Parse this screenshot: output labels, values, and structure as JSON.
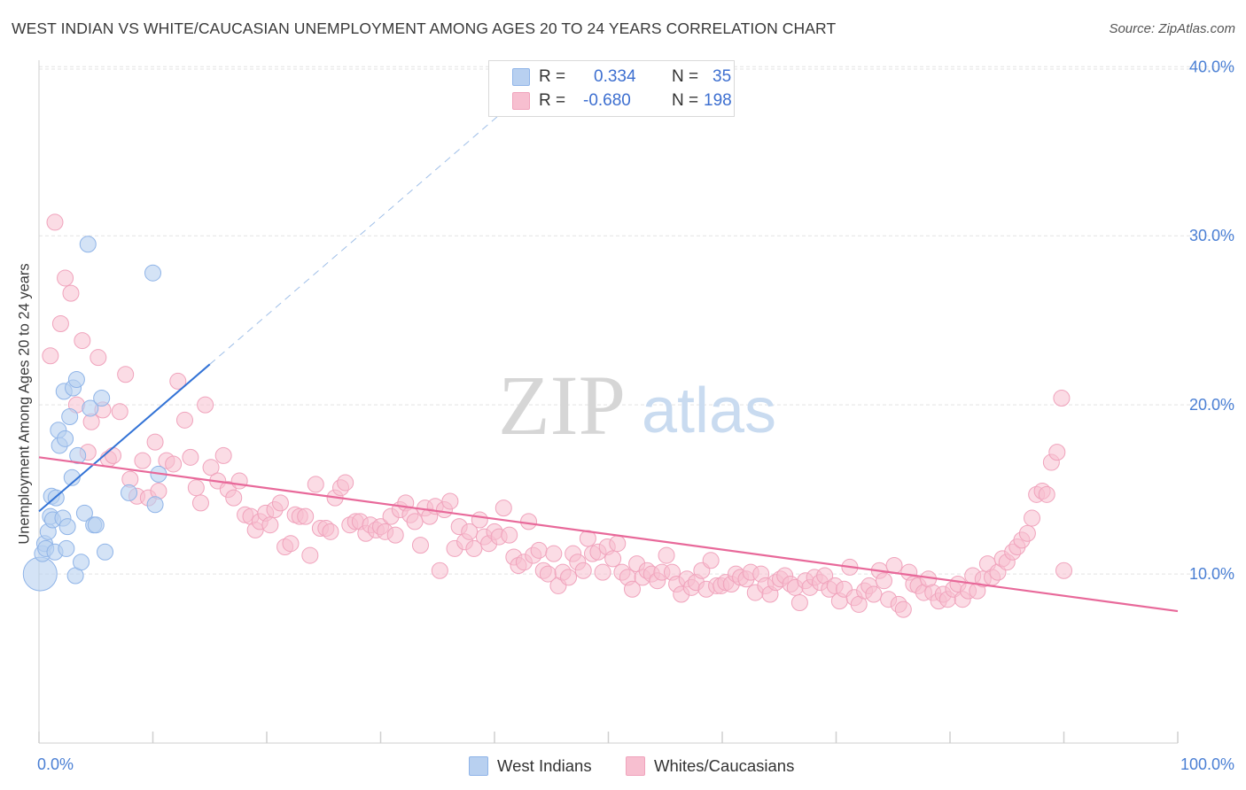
{
  "title": "WEST INDIAN VS WHITE/CAUCASIAN UNEMPLOYMENT AMONG AGES 20 TO 24 YEARS CORRELATION CHART",
  "source": "Source: ZipAtlas.com",
  "watermark": {
    "zip": "ZIP",
    "atlas": "atlas"
  },
  "legend": {
    "rows": [
      {
        "r_label": "R =",
        "r_value": "0.334",
        "n_label": "N =",
        "n_value": "35"
      },
      {
        "r_label": "R =",
        "r_value": "-0.680",
        "n_label": "N =",
        "n_value": "198"
      }
    ]
  },
  "bottom_legend": [
    "West Indians",
    "Whites/Caucasians"
  ],
  "colors": {
    "blue_fill": "#b8d0f0",
    "blue_stroke": "#8fb4e8",
    "blue_line": "#3373d6",
    "pink_fill": "#f7bfd0",
    "pink_stroke": "#f0a3bc",
    "pink_line": "#e8699a",
    "tick_label": "#4a7fd4",
    "grid": "#e3e3e3"
  },
  "chart_data": {
    "type": "scatter",
    "title": "WEST INDIAN VS WHITE/CAUCASIAN UNEMPLOYMENT AMONG AGES 20 TO 24 YEARS CORRELATION CHART",
    "xlabel": "",
    "ylabel": "Unemployment Among Ages 20 to 24 years",
    "xlim": [
      0,
      100
    ],
    "ylim": [
      0,
      40.8
    ],
    "x_tick_labels": [
      "0.0%",
      "100.0%"
    ],
    "y_ticks": [
      10,
      20,
      30,
      40
    ],
    "y_tick_labels": [
      "10.0%",
      "20.0%",
      "30.0%",
      "40.0%"
    ],
    "grid": true,
    "legend_position": "top-center",
    "series": [
      {
        "name": "West Indians",
        "R": 0.334,
        "N": 35,
        "trend": {
          "x": [
            0,
            15
          ],
          "y": [
            13.7,
            22.4
          ],
          "dashed_extension_to_x": 42
        },
        "points": [
          [
            0.1,
            10.0
          ],
          [
            0.3,
            11.2
          ],
          [
            0.5,
            11.8
          ],
          [
            0.6,
            11.5
          ],
          [
            0.8,
            12.5
          ],
          [
            1.0,
            13.4
          ],
          [
            1.1,
            14.6
          ],
          [
            1.2,
            13.2
          ],
          [
            1.4,
            11.3
          ],
          [
            1.5,
            14.5
          ],
          [
            1.7,
            18.5
          ],
          [
            1.8,
            17.6
          ],
          [
            2.1,
            13.3
          ],
          [
            2.2,
            20.8
          ],
          [
            2.3,
            18.0
          ],
          [
            2.4,
            11.5
          ],
          [
            2.5,
            12.8
          ],
          [
            2.7,
            19.3
          ],
          [
            2.9,
            15.7
          ],
          [
            3.0,
            21.0
          ],
          [
            3.2,
            9.9
          ],
          [
            3.3,
            21.5
          ],
          [
            3.4,
            17.0
          ],
          [
            3.7,
            10.7
          ],
          [
            4.0,
            13.6
          ],
          [
            4.3,
            29.5
          ],
          [
            4.5,
            19.8
          ],
          [
            4.8,
            12.9
          ],
          [
            5.0,
            12.9
          ],
          [
            5.5,
            20.4
          ],
          [
            5.8,
            11.3
          ],
          [
            7.9,
            14.8
          ],
          [
            10.0,
            27.8
          ],
          [
            10.2,
            14.1
          ],
          [
            10.5,
            15.9
          ]
        ]
      },
      {
        "name": "Whites/Caucasians",
        "R": -0.68,
        "N": 198,
        "trend": {
          "x": [
            0,
            100
          ],
          "y": [
            16.9,
            7.8
          ]
        },
        "points": [
          [
            1.0,
            22.9
          ],
          [
            1.4,
            30.8
          ],
          [
            1.9,
            24.8
          ],
          [
            2.3,
            27.5
          ],
          [
            2.8,
            26.6
          ],
          [
            3.3,
            20.0
          ],
          [
            3.8,
            23.8
          ],
          [
            4.3,
            17.2
          ],
          [
            4.6,
            19.0
          ],
          [
            5.2,
            22.8
          ],
          [
            5.6,
            19.7
          ],
          [
            6.1,
            16.8
          ],
          [
            6.5,
            17.0
          ],
          [
            7.1,
            19.6
          ],
          [
            7.6,
            21.8
          ],
          [
            8.0,
            15.6
          ],
          [
            8.6,
            14.6
          ],
          [
            9.1,
            16.7
          ],
          [
            9.6,
            14.5
          ],
          [
            10.2,
            17.8
          ],
          [
            10.5,
            14.9
          ],
          [
            11.2,
            16.7
          ],
          [
            11.8,
            16.5
          ],
          [
            12.2,
            21.4
          ],
          [
            12.8,
            19.1
          ],
          [
            13.3,
            16.9
          ],
          [
            13.8,
            15.1
          ],
          [
            14.2,
            14.2
          ],
          [
            14.6,
            20.0
          ],
          [
            15.1,
            16.3
          ],
          [
            15.7,
            15.5
          ],
          [
            16.2,
            17.0
          ],
          [
            16.6,
            15.0
          ],
          [
            17.1,
            14.5
          ],
          [
            17.6,
            15.5
          ],
          [
            18.1,
            13.5
          ],
          [
            18.6,
            13.4
          ],
          [
            19.0,
            12.6
          ],
          [
            19.4,
            13.1
          ],
          [
            19.9,
            13.6
          ],
          [
            20.3,
            12.9
          ],
          [
            20.7,
            13.8
          ],
          [
            21.2,
            14.2
          ],
          [
            21.6,
            11.6
          ],
          [
            22.1,
            11.8
          ],
          [
            22.5,
            13.5
          ],
          [
            22.9,
            13.4
          ],
          [
            23.4,
            13.4
          ],
          [
            23.8,
            11.1
          ],
          [
            24.3,
            15.3
          ],
          [
            24.7,
            12.7
          ],
          [
            25.2,
            12.7
          ],
          [
            25.6,
            12.5
          ],
          [
            26.0,
            14.5
          ],
          [
            26.5,
            15.1
          ],
          [
            26.9,
            15.4
          ],
          [
            27.3,
            12.9
          ],
          [
            27.8,
            13.1
          ],
          [
            28.2,
            13.1
          ],
          [
            28.7,
            12.4
          ],
          [
            29.1,
            12.9
          ],
          [
            29.6,
            12.6
          ],
          [
            30.0,
            12.8
          ],
          [
            30.4,
            12.5
          ],
          [
            30.9,
            13.4
          ],
          [
            31.3,
            12.3
          ],
          [
            31.7,
            13.8
          ],
          [
            32.2,
            14.2
          ],
          [
            32.6,
            13.5
          ],
          [
            33.0,
            13.1
          ],
          [
            33.5,
            11.7
          ],
          [
            33.9,
            13.9
          ],
          [
            34.3,
            13.4
          ],
          [
            34.8,
            14.0
          ],
          [
            35.2,
            10.2
          ],
          [
            35.6,
            13.8
          ],
          [
            36.1,
            14.3
          ],
          [
            36.5,
            11.5
          ],
          [
            36.9,
            12.8
          ],
          [
            37.4,
            11.9
          ],
          [
            37.8,
            12.5
          ],
          [
            38.2,
            11.5
          ],
          [
            38.7,
            13.2
          ],
          [
            39.1,
            12.2
          ],
          [
            39.5,
            11.8
          ],
          [
            40.0,
            12.5
          ],
          [
            40.4,
            12.2
          ],
          [
            40.8,
            13.9
          ],
          [
            41.3,
            12.3
          ],
          [
            41.7,
            11.0
          ],
          [
            42.1,
            10.5
          ],
          [
            42.6,
            10.7
          ],
          [
            43.0,
            13.1
          ],
          [
            43.4,
            11.1
          ],
          [
            43.9,
            11.4
          ],
          [
            44.3,
            10.2
          ],
          [
            44.7,
            10.0
          ],
          [
            45.2,
            11.2
          ],
          [
            45.6,
            9.3
          ],
          [
            46.0,
            10.1
          ],
          [
            46.5,
            9.8
          ],
          [
            46.9,
            11.2
          ],
          [
            47.3,
            10.7
          ],
          [
            47.8,
            10.2
          ],
          [
            48.2,
            12.1
          ],
          [
            48.6,
            11.2
          ],
          [
            49.1,
            11.3
          ],
          [
            49.5,
            10.1
          ],
          [
            49.9,
            11.6
          ],
          [
            50.4,
            10.9
          ],
          [
            50.8,
            11.8
          ],
          [
            51.2,
            10.1
          ],
          [
            51.7,
            9.8
          ],
          [
            52.1,
            9.1
          ],
          [
            52.5,
            10.6
          ],
          [
            53.0,
            9.8
          ],
          [
            53.4,
            10.2
          ],
          [
            53.8,
            10.0
          ],
          [
            54.3,
            9.6
          ],
          [
            54.7,
            10.1
          ],
          [
            55.1,
            11.1
          ],
          [
            55.6,
            10.1
          ],
          [
            56.0,
            9.4
          ],
          [
            56.4,
            8.8
          ],
          [
            56.9,
            9.7
          ],
          [
            57.3,
            9.2
          ],
          [
            57.7,
            9.5
          ],
          [
            58.2,
            10.2
          ],
          [
            58.6,
            9.1
          ],
          [
            59.0,
            10.8
          ],
          [
            59.5,
            9.3
          ],
          [
            59.9,
            9.3
          ],
          [
            60.3,
            9.5
          ],
          [
            60.8,
            9.4
          ],
          [
            61.2,
            10.0
          ],
          [
            61.6,
            9.8
          ],
          [
            62.1,
            9.7
          ],
          [
            62.5,
            10.1
          ],
          [
            62.9,
            8.9
          ],
          [
            63.4,
            10.0
          ],
          [
            63.8,
            9.3
          ],
          [
            64.2,
            8.8
          ],
          [
            64.7,
            9.5
          ],
          [
            65.1,
            9.7
          ],
          [
            65.5,
            9.9
          ],
          [
            66.0,
            9.4
          ],
          [
            66.4,
            9.2
          ],
          [
            66.8,
            8.3
          ],
          [
            67.3,
            9.6
          ],
          [
            67.7,
            9.2
          ],
          [
            68.1,
            9.8
          ],
          [
            68.6,
            9.5
          ],
          [
            69.0,
            9.9
          ],
          [
            69.4,
            9.1
          ],
          [
            69.9,
            9.3
          ],
          [
            70.3,
            8.4
          ],
          [
            70.7,
            9.1
          ],
          [
            71.2,
            10.4
          ],
          [
            71.6,
            8.6
          ],
          [
            72.0,
            8.2
          ],
          [
            72.5,
            9.0
          ],
          [
            72.9,
            9.3
          ],
          [
            73.3,
            8.8
          ],
          [
            73.8,
            10.2
          ],
          [
            74.2,
            9.6
          ],
          [
            74.6,
            8.5
          ],
          [
            75.1,
            10.5
          ],
          [
            75.5,
            8.2
          ],
          [
            75.9,
            7.9
          ],
          [
            76.4,
            10.1
          ],
          [
            76.8,
            9.4
          ],
          [
            77.2,
            9.3
          ],
          [
            77.7,
            8.9
          ],
          [
            78.1,
            9.7
          ],
          [
            78.5,
            8.9
          ],
          [
            79.0,
            8.4
          ],
          [
            79.4,
            8.8
          ],
          [
            79.8,
            8.5
          ],
          [
            80.3,
            9.1
          ],
          [
            80.7,
            9.4
          ],
          [
            81.1,
            8.5
          ],
          [
            81.6,
            9.0
          ],
          [
            82.0,
            9.9
          ],
          [
            82.4,
            9.0
          ],
          [
            82.9,
            9.7
          ],
          [
            83.3,
            10.6
          ],
          [
            83.7,
            9.8
          ],
          [
            84.2,
            10.1
          ],
          [
            84.6,
            10.9
          ],
          [
            85.0,
            10.7
          ],
          [
            85.5,
            11.3
          ],
          [
            85.9,
            11.6
          ],
          [
            86.3,
            12.0
          ],
          [
            86.8,
            12.4
          ],
          [
            87.2,
            13.3
          ],
          [
            87.6,
            14.7
          ],
          [
            88.1,
            14.9
          ],
          [
            88.5,
            14.7
          ],
          [
            88.9,
            16.6
          ],
          [
            89.4,
            17.2
          ],
          [
            89.8,
            20.4
          ],
          [
            90.0,
            10.2
          ]
        ]
      }
    ]
  }
}
